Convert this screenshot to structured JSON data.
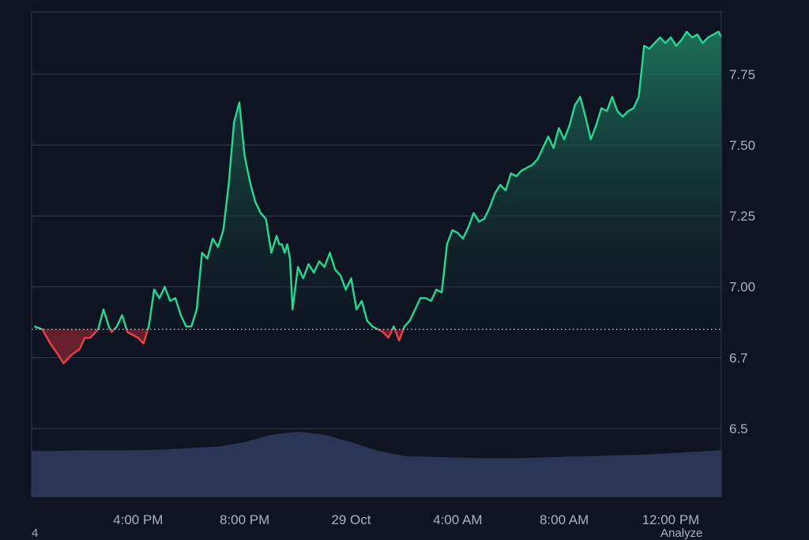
{
  "chart_data": {
    "type": "area",
    "baseline": 6.85,
    "ylim": [
      6.3,
      7.95
    ],
    "yticks": [
      {
        "value": 7.75,
        "label": "7.75"
      },
      {
        "value": 7.5,
        "label": "7.50"
      },
      {
        "value": 7.25,
        "label": "7.25"
      },
      {
        "value": 7.0,
        "label": "7.00"
      },
      {
        "value": 6.75,
        "label": "6.7"
      },
      {
        "value": 6.5,
        "label": "6.5"
      }
    ],
    "xticks": [
      {
        "t": 2,
        "label": "4:00 PM"
      },
      {
        "t": 4,
        "label": "8:00 PM"
      },
      {
        "t": 6,
        "label": "29 Oct"
      },
      {
        "t": 8,
        "label": "4:00 AM"
      },
      {
        "t": 10,
        "label": "8:00 AM"
      },
      {
        "t": 12,
        "label": "12:00 PM"
      }
    ],
    "xlim": [
      0.05,
      12.95
    ],
    "series": [
      {
        "x": [
          0.05,
          0.2,
          0.35,
          0.5,
          0.6,
          0.75,
          0.9,
          1.0,
          1.1,
          1.25,
          1.35,
          1.45,
          1.5,
          1.6,
          1.7,
          1.8,
          1.9,
          2.0,
          2.1,
          2.2,
          2.3,
          2.4,
          2.5,
          2.6,
          2.7,
          2.8,
          2.9,
          3.0,
          3.1,
          3.2,
          3.3,
          3.4,
          3.5,
          3.6,
          3.7,
          3.8,
          3.9,
          4.0,
          4.1,
          4.2,
          4.3,
          4.4,
          4.5,
          4.6,
          4.65,
          4.7,
          4.75,
          4.8,
          4.85,
          4.9,
          5.0,
          5.1,
          5.2,
          5.3,
          5.4,
          5.5,
          5.6,
          5.7,
          5.8,
          5.9,
          6.0,
          6.1,
          6.2,
          6.3,
          6.4,
          6.5,
          6.6,
          6.7,
          6.8,
          6.9,
          7.0,
          7.1,
          7.2,
          7.3,
          7.4,
          7.5,
          7.6,
          7.7,
          7.8,
          7.9,
          8.0,
          8.1,
          8.2,
          8.3,
          8.4,
          8.5,
          8.6,
          8.7,
          8.8,
          8.9,
          9.0,
          9.1,
          9.2,
          9.3,
          9.4,
          9.5,
          9.6,
          9.7,
          9.8,
          9.9,
          10.0,
          10.1,
          10.2,
          10.3,
          10.4,
          10.5,
          10.6,
          10.7,
          10.8,
          10.9,
          11.0,
          11.1,
          11.2,
          11.3,
          11.4,
          11.5,
          11.6,
          11.7,
          11.8,
          11.9,
          12.0,
          12.1,
          12.2,
          12.3,
          12.4,
          12.5,
          12.6,
          12.7,
          12.8,
          12.9,
          12.95
        ],
        "y": [
          6.86,
          6.85,
          6.8,
          6.76,
          6.73,
          6.76,
          6.78,
          6.82,
          6.82,
          6.85,
          6.92,
          6.86,
          6.84,
          6.86,
          6.9,
          6.84,
          6.83,
          6.82,
          6.8,
          6.86,
          6.99,
          6.96,
          7.0,
          6.95,
          6.96,
          6.9,
          6.86,
          6.86,
          6.92,
          7.12,
          7.1,
          7.17,
          7.14,
          7.2,
          7.36,
          7.58,
          7.65,
          7.46,
          7.37,
          7.3,
          7.26,
          7.24,
          7.12,
          7.18,
          7.15,
          7.15,
          7.12,
          7.15,
          7.1,
          6.92,
          7.07,
          7.03,
          7.08,
          7.05,
          7.09,
          7.07,
          7.12,
          7.06,
          7.04,
          6.99,
          7.03,
          6.92,
          6.95,
          6.88,
          6.86,
          6.85,
          6.84,
          6.82,
          6.86,
          6.81,
          6.86,
          6.88,
          6.92,
          6.96,
          6.96,
          6.95,
          6.99,
          6.98,
          7.15,
          7.2,
          7.19,
          7.17,
          7.21,
          7.26,
          7.23,
          7.24,
          7.28,
          7.33,
          7.36,
          7.34,
          7.4,
          7.39,
          7.41,
          7.42,
          7.43,
          7.45,
          7.49,
          7.53,
          7.49,
          7.56,
          7.52,
          7.57,
          7.64,
          7.67,
          7.6,
          7.52,
          7.57,
          7.63,
          7.62,
          7.67,
          7.62,
          7.6,
          7.62,
          7.63,
          7.67,
          7.85,
          7.84,
          7.86,
          7.88,
          7.86,
          7.88,
          7.85,
          7.87,
          7.9,
          7.88,
          7.89,
          7.86,
          7.88,
          7.89,
          7.9,
          7.88
        ]
      }
    ],
    "volume": {
      "x": [
        0.0,
        0.5,
        1.0,
        1.5,
        2.0,
        2.5,
        3.0,
        3.5,
        4.0,
        4.5,
        5.0,
        5.5,
        6.0,
        6.5,
        7.0,
        7.5,
        8.0,
        8.5,
        9.0,
        9.5,
        10.0,
        10.5,
        11.0,
        11.5,
        12.0,
        12.5,
        12.95
      ],
      "v": [
        0.62,
        0.62,
        0.63,
        0.63,
        0.63,
        0.64,
        0.66,
        0.68,
        0.74,
        0.84,
        0.88,
        0.84,
        0.74,
        0.62,
        0.55,
        0.54,
        0.53,
        0.52,
        0.52,
        0.53,
        0.54,
        0.55,
        0.56,
        0.57,
        0.59,
        0.61,
        0.63
      ]
    },
    "colors": {
      "up_line": "#26d992",
      "down_line": "#e2444c",
      "up_fill": "#1f6e55",
      "down_fill": "#6e1f2c",
      "volume": "#2b3556",
      "grid": "#343d52",
      "baseline": "#cfd6e4",
      "background": "#0e1421"
    }
  },
  "footer": {
    "left": "4",
    "right": "Analyze"
  }
}
